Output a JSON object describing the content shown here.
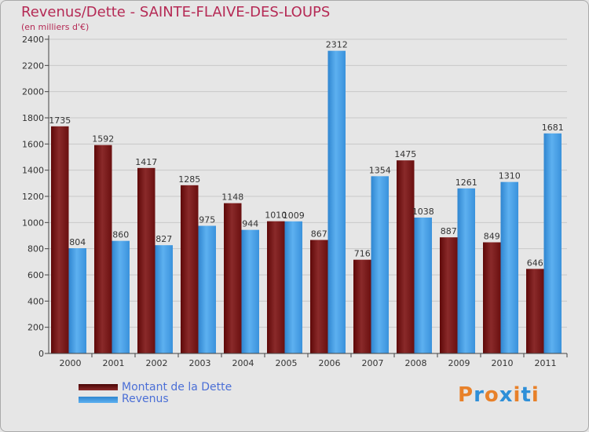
{
  "header": {
    "title": "Revenus/Dette - SAINTE-FLAIVE-DES-LOUPS",
    "subtitle": "(en milliers d'€)"
  },
  "legend": {
    "items": [
      {
        "label": "Montant de la Dette",
        "color": "#7a1a1a"
      },
      {
        "label": "Revenus",
        "color": "#4a9fe6"
      }
    ]
  },
  "logo": {
    "text": "Proxiti",
    "colors": [
      "#e8812a",
      "#2e8fd8",
      "#e8812a",
      "#2e8fd8",
      "#e8812a",
      "#2e8fd8",
      "#e8812a"
    ]
  },
  "chart_data": {
    "type": "bar",
    "title": "Revenus/Dette - SAINTE-FLAIVE-DES-LOUPS",
    "ylabel": "(en milliers d'€)",
    "ylim": [
      0,
      2400
    ],
    "yticks": [
      0,
      200,
      400,
      600,
      800,
      1000,
      1200,
      1400,
      1600,
      1800,
      2000,
      2200,
      2400
    ],
    "grid": true,
    "legend_position": "bottom-left",
    "categories": [
      "2000",
      "2001",
      "2002",
      "2003",
      "2004",
      "2005",
      "2006",
      "2007",
      "2008",
      "2009",
      "2010",
      "2011"
    ],
    "series": [
      {
        "name": "Montant de la Dette",
        "color": "#7a1a1a",
        "values": [
          1735,
          1592,
          1417,
          1285,
          1148,
          1010,
          867,
          716,
          1475,
          887,
          849,
          646
        ]
      },
      {
        "name": "Revenus",
        "color": "#4a9fe6",
        "values": [
          804,
          860,
          827,
          975,
          944,
          1009,
          2312,
          1354,
          1038,
          1261,
          1310,
          1681
        ]
      }
    ]
  }
}
